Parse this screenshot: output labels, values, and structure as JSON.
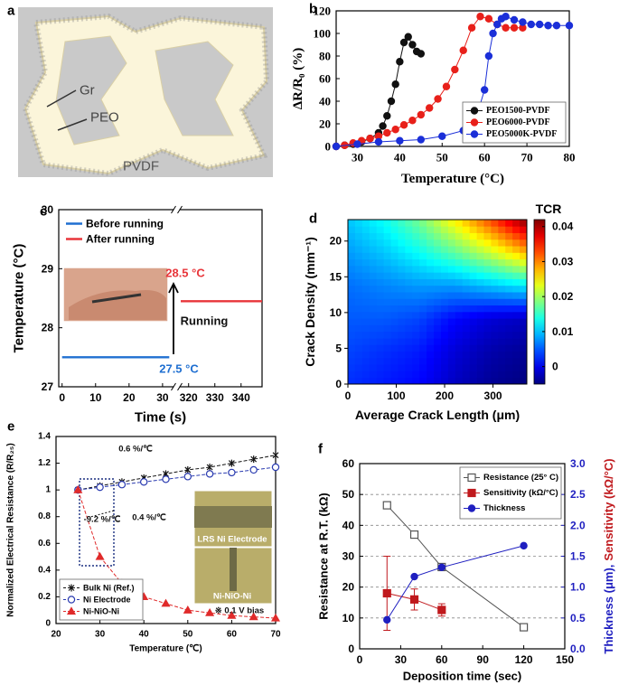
{
  "diagram": {
    "panel": "a",
    "labels": [
      "Gr",
      "PEO",
      "PVDF"
    ]
  },
  "chart_data": [
    {
      "type": "line",
      "panel": "b",
      "xlabel": "Temperature (°C)",
      "ylabel": "ΔR/R₀ (%)",
      "xlim": [
        25,
        80
      ],
      "xticks": [
        30,
        40,
        50,
        60,
        70,
        80
      ],
      "ylim": [
        0,
        120
      ],
      "yticks": [
        0,
        20,
        40,
        60,
        80,
        100,
        120
      ],
      "legend": "lower right",
      "legend_frame": true,
      "series": [
        {
          "name": "PEO1500-PVDF",
          "color": "#111111",
          "marker": "circle",
          "filled": true,
          "x": [
            25,
            27,
            29,
            31,
            33,
            35,
            36,
            37,
            38,
            39,
            40,
            41,
            42,
            43,
            44,
            45
          ],
          "values": [
            0,
            1,
            2,
            4,
            7,
            12,
            18,
            27,
            40,
            55,
            75,
            92,
            97,
            90,
            84,
            82
          ]
        },
        {
          "name": "PEO6000-PVDF",
          "color": "#e8201a",
          "marker": "circle",
          "filled": true,
          "x": [
            25,
            27,
            29,
            31,
            33,
            35,
            37,
            39,
            41,
            43,
            45,
            47,
            49,
            51,
            53,
            55,
            57,
            59,
            61,
            63,
            65,
            67,
            69
          ],
          "values": [
            0,
            1,
            3,
            5,
            7,
            9,
            12,
            15,
            19,
            23,
            28,
            34,
            42,
            53,
            68,
            85,
            105,
            115,
            113,
            108,
            105,
            105,
            105
          ]
        },
        {
          "name": "PEO5000K-PVDF",
          "color": "#1b2fd8",
          "marker": "circle",
          "filled": true,
          "x": [
            25,
            30,
            35,
            40,
            45,
            50,
            55,
            58,
            60,
            61,
            62,
            63,
            64,
            65,
            67,
            69,
            71,
            73,
            75,
            77,
            80
          ],
          "values": [
            0,
            2,
            4,
            5,
            6,
            9,
            14,
            25,
            50,
            80,
            100,
            108,
            113,
            115,
            112,
            110,
            108,
            108,
            107,
            107,
            107
          ]
        }
      ]
    },
    {
      "type": "line",
      "panel": "c",
      "xlabel": "Time (s)",
      "ylabel": "Temperature (°C)",
      "x_segments": [
        {
          "xlim": [
            -1,
            33
          ],
          "xticks": [
            0,
            10,
            20,
            30
          ]
        },
        {
          "xlim": [
            317,
            348
          ],
          "xticks": [
            320,
            330,
            340
          ]
        }
      ],
      "ylim": [
        27,
        30
      ],
      "yticks": [
        27,
        28,
        29,
        30
      ],
      "legend": "upper left",
      "legend_frame": false,
      "annotations": [
        "28.5 °C",
        "Running",
        "27.5 °C"
      ],
      "series": [
        {
          "name": "Before running",
          "color": "#1f6fd1",
          "x": [
            0,
            32
          ],
          "values": [
            27.5,
            27.5
          ]
        },
        {
          "name": "After running",
          "color": "#e8353a",
          "x": [
            317,
            348
          ],
          "values": [
            28.45,
            28.45
          ]
        }
      ]
    },
    {
      "type": "contour",
      "panel": "d",
      "xlabel": "Average Crack Length (μm)",
      "ylabel": "Crack Density (mm⁻¹)",
      "xlim": [
        0,
        370
      ],
      "xticks": [
        0,
        100,
        200,
        300
      ],
      "ylim": [
        0,
        23
      ],
      "yticks": [
        0,
        5,
        10,
        15,
        20
      ],
      "x": [
        0,
        74,
        148,
        222,
        296,
        370
      ],
      "y": [
        0,
        4.6,
        9.2,
        13.8,
        18.4,
        23
      ],
      "z": [
        [
          0.003,
          0.002,
          0.001,
          -0.002,
          -0.004,
          -0.005
        ],
        [
          0.004,
          0.003,
          0.002,
          -0.001,
          -0.003,
          -0.004
        ],
        [
          0.005,
          0.005,
          0.004,
          0.001,
          -0.001,
          -0.002
        ],
        [
          0.006,
          0.007,
          0.008,
          0.008,
          0.01,
          0.012
        ],
        [
          0.008,
          0.01,
          0.013,
          0.017,
          0.022,
          0.028
        ],
        [
          0.01,
          0.013,
          0.018,
          0.025,
          0.033,
          0.042
        ]
      ],
      "zlim": [
        -0.005,
        0.042
      ],
      "colorbar_title": "TCR",
      "colorbar_ticks": [
        0,
        0.01,
        0.02,
        0.03,
        0.04
      ]
    },
    {
      "type": "line",
      "panel": "e",
      "xlabel": "Temperature (℃)",
      "ylabel": "Normalized Electrical Resistance (R/R₂₅)",
      "xlim": [
        20,
        70
      ],
      "xticks": [
        20,
        30,
        40,
        50,
        60,
        70
      ],
      "ylim": [
        0,
        1.4
      ],
      "yticks": [
        0,
        0.2,
        0.4,
        0.6,
        0.8,
        1,
        1.2,
        1.4
      ],
      "legend": "lower left",
      "legend_frame": true,
      "annotations": [
        "0.6 %/℃",
        "0.4 %/℃",
        "-9.2 %/℃",
        "※ 0.1 V bias",
        "LRS Ni Electrode",
        "Ni-NiO-Ni"
      ],
      "series": [
        {
          "name": "Bulk Ni (Ref.)",
          "color": "#111111",
          "marker": "x",
          "filled": true,
          "dash": true,
          "x": [
            25,
            30,
            35,
            40,
            45,
            50,
            55,
            60,
            65,
            70
          ],
          "values": [
            1,
            1.03,
            1.06,
            1.09,
            1.12,
            1.15,
            1.17,
            1.2,
            1.23,
            1.26
          ]
        },
        {
          "name": "Ni Electrode",
          "color": "#2a3bb0",
          "marker": "circle",
          "filled": false,
          "dash": true,
          "x": [
            25,
            30,
            35,
            40,
            45,
            50,
            55,
            60,
            65,
            70
          ],
          "values": [
            1,
            1.02,
            1.04,
            1.06,
            1.08,
            1.1,
            1.12,
            1.13,
            1.15,
            1.17
          ]
        },
        {
          "name": "Ni-NiO-Ni",
          "color": "#e02a2a",
          "marker": "triangle",
          "filled": true,
          "dash": true,
          "x": [
            25,
            30,
            35,
            40,
            45,
            50,
            55,
            60,
            65,
            70
          ],
          "values": [
            1,
            0.5,
            0.3,
            0.2,
            0.15,
            0.1,
            0.08,
            0.06,
            0.05,
            0.04
          ]
        }
      ]
    },
    {
      "type": "line",
      "panel": "f",
      "xlabel": "Deposition time (sec)",
      "ylabel": "Resistance at R.T. (kΩ)",
      "y2label": [
        "Thickness (μm),",
        "Sensitivity (kΩ/°C)"
      ],
      "y2label_colors": [
        "#1f1fc0",
        "#c0191d"
      ],
      "y2color": "#1f1fc0",
      "xlim": [
        0,
        150
      ],
      "xticks": [
        0,
        30,
        60,
        90,
        120,
        150
      ],
      "ylim": [
        0,
        60
      ],
      "yticks": [
        0,
        10,
        20,
        30,
        40,
        50,
        60
      ],
      "y2lim": [
        0,
        3
      ],
      "y2ticks": [
        {
          "value": 0,
          "label": "0.0"
        },
        0.5,
        {
          "value": 1,
          "label": "1.0"
        },
        1.5,
        {
          "value": 2,
          "label": "2.0"
        },
        2.5,
        {
          "value": 3,
          "label": "3.0"
        }
      ],
      "grid": true,
      "legend": "upper right",
      "legend_frame": true,
      "series": [
        {
          "name": "Resistance (25° C)",
          "color": "#555555",
          "marker": "square",
          "filled": false,
          "x": [
            20,
            40,
            60,
            120
          ],
          "values": [
            46.5,
            37,
            26.5,
            7
          ]
        },
        {
          "name": "Sensitivity (kΩ/°C)",
          "color": "#c0191d",
          "marker": "square",
          "filled": true,
          "axis": "y2",
          "x": [
            20,
            40,
            60
          ],
          "values": [
            0.9,
            0.8,
            0.63
          ],
          "errors": [
            0.6,
            0.17,
            0.1
          ]
        },
        {
          "name": "Thickness",
          "color": "#1f1fc0",
          "marker": "circle",
          "filled": true,
          "axis": "y2",
          "x": [
            20,
            40,
            60,
            120
          ],
          "values": [
            0.47,
            1.17,
            1.32,
            1.67
          ]
        }
      ]
    }
  ]
}
